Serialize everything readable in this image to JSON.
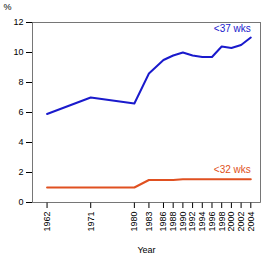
{
  "chart_data": {
    "type": "line",
    "xlabel": "Year",
    "ylabel": "%",
    "x": [
      1962,
      1971,
      1980,
      1983,
      1986,
      1988,
      1990,
      1992,
      1994,
      1996,
      1998,
      2000,
      2002,
      2004
    ],
    "series": [
      {
        "name": "<37 wks",
        "color": "#1a1acc",
        "values": [
          5.9,
          7.0,
          6.6,
          8.6,
          9.5,
          9.8,
          10.0,
          9.8,
          9.7,
          9.7,
          10.4,
          10.3,
          10.5,
          11.0
        ]
      },
      {
        "name": "<32 wks",
        "color": "#e05020",
        "values": [
          1.0,
          1.0,
          1.0,
          1.5,
          1.5,
          1.5,
          1.55,
          1.55,
          1.55,
          1.55,
          1.55,
          1.55,
          1.55,
          1.55
        ]
      }
    ],
    "xlim": [
      1959,
      2006
    ],
    "xticks": [
      1962,
      1971,
      1980,
      1983,
      1986,
      1988,
      1990,
      1992,
      1994,
      1996,
      1998,
      2000,
      2002,
      2004
    ],
    "ylim": [
      0,
      12
    ],
    "yticks": [
      0,
      2,
      4,
      6,
      8,
      10,
      12
    ],
    "grid": false
  }
}
